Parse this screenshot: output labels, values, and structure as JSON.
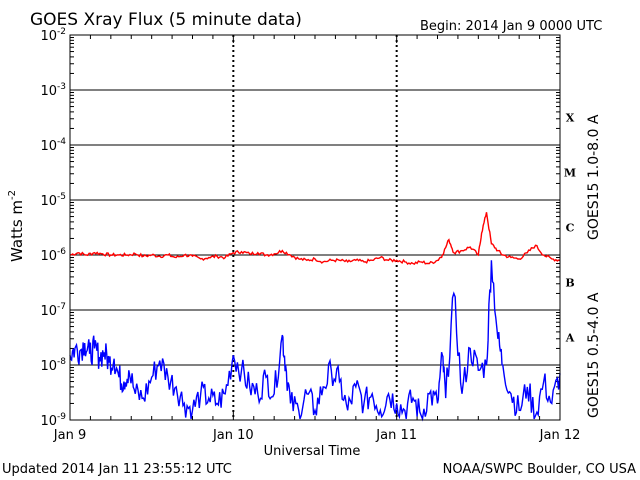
{
  "chart_data": {
    "type": "line",
    "title": "GOES Xray Flux (5 minute data)",
    "begin_label": "Begin:  2014 Jan 9 0000 UTC",
    "xlabel": "Universal Time",
    "ylabel_base": "Watts m",
    "ylabel_exp": "-2",
    "x_ticks": [
      "Jan 9",
      "Jan 10",
      "Jan 11",
      "Jan 12"
    ],
    "x_range_days": [
      0,
      3
    ],
    "yscale": "log",
    "ylim": [
      1e-09,
      0.01
    ],
    "y_ticks": [
      {
        "base": "10",
        "exp": "-9"
      },
      {
        "base": "10",
        "exp": "-8"
      },
      {
        "base": "10",
        "exp": "-7"
      },
      {
        "base": "10",
        "exp": "-6"
      },
      {
        "base": "10",
        "exp": "-5"
      },
      {
        "base": "10",
        "exp": "-4"
      },
      {
        "base": "10",
        "exp": "-3"
      },
      {
        "base": "10",
        "exp": "-2"
      }
    ],
    "flare_classes": [
      {
        "label": "A",
        "min": 1e-08
      },
      {
        "label": "B",
        "min": 1e-07
      },
      {
        "label": "C",
        "min": 1e-06
      },
      {
        "label": "M",
        "min": 1e-05
      },
      {
        "label": "X",
        "min": 0.0001
      }
    ],
    "series": [
      {
        "name": "GOES15 1.0-8.0 A",
        "color": "#ff0000",
        "x": [
          0.0,
          0.05,
          0.1,
          0.15,
          0.2,
          0.25,
          0.3,
          0.35,
          0.4,
          0.45,
          0.5,
          0.55,
          0.6,
          0.65,
          0.7,
          0.75,
          0.8,
          0.85,
          0.9,
          0.95,
          1.0,
          1.05,
          1.1,
          1.15,
          1.2,
          1.25,
          1.3,
          1.35,
          1.4,
          1.45,
          1.5,
          1.55,
          1.6,
          1.65,
          1.7,
          1.75,
          1.8,
          1.85,
          1.9,
          1.95,
          2.0,
          2.05,
          2.1,
          2.15,
          2.2,
          2.25,
          2.28,
          2.32,
          2.35,
          2.4,
          2.45,
          2.5,
          2.52,
          2.55,
          2.58,
          2.62,
          2.65,
          2.7,
          2.75,
          2.8,
          2.85,
          2.9,
          2.95,
          3.0
        ],
        "y": [
          1e-06,
          1.1e-06,
          1e-06,
          1.1e-06,
          1.05e-06,
          1e-06,
          1e-06,
          1e-06,
          1.05e-06,
          9.5e-07,
          1e-06,
          9.5e-07,
          1e-06,
          9e-07,
          1e-06,
          9.5e-07,
          8.5e-07,
          9e-07,
          9.5e-07,
          9e-07,
          1.1e-06,
          1.15e-06,
          1.05e-06,
          1.1e-06,
          1e-06,
          1.05e-06,
          1.2e-06,
          1e-06,
          8.5e-07,
          8e-07,
          8.5e-07,
          7.5e-07,
          8e-07,
          8e-07,
          7.5e-07,
          8e-07,
          7.5e-07,
          8e-07,
          9e-07,
          8e-07,
          8e-07,
          7.5e-07,
          7e-07,
          7.5e-07,
          7e-07,
          8e-07,
          1e-06,
          1.9e-06,
          1.1e-06,
          1.2e-06,
          1.4e-06,
          1e-06,
          2.5e-06,
          6e-06,
          1.6e-06,
          1.2e-06,
          1e-06,
          9e-07,
          8.5e-07,
          1.1e-06,
          1.5e-06,
          1e-06,
          8.5e-07,
          8e-07
        ]
      },
      {
        "name": "GOES15 0.5-4.0 A",
        "color": "#0000ff",
        "x": [
          0.0,
          0.03,
          0.06,
          0.09,
          0.12,
          0.15,
          0.18,
          0.21,
          0.24,
          0.27,
          0.3,
          0.33,
          0.36,
          0.4,
          0.45,
          0.5,
          0.55,
          0.6,
          0.65,
          0.7,
          0.75,
          0.8,
          0.85,
          0.9,
          0.95,
          1.0,
          1.05,
          1.1,
          1.15,
          1.2,
          1.25,
          1.3,
          1.32,
          1.35,
          1.4,
          1.45,
          1.5,
          1.55,
          1.6,
          1.65,
          1.7,
          1.75,
          1.8,
          1.85,
          1.9,
          1.95,
          2.0,
          2.05,
          2.1,
          2.15,
          2.2,
          2.25,
          2.28,
          2.3,
          2.35,
          2.4,
          2.45,
          2.5,
          2.55,
          2.58,
          2.62,
          2.65,
          2.7,
          2.75,
          2.8,
          2.85,
          2.9,
          2.95,
          3.0
        ],
        "y": [
          1.5e-08,
          2e-08,
          1.8e-08,
          2.5e-08,
          1.6e-08,
          2e-08,
          1.4e-08,
          1.7e-08,
          1.1e-08,
          1.3e-08,
          6e-09,
          5e-09,
          8e-09,
          3e-09,
          2.5e-09,
          6e-09,
          1.2e-08,
          6e-09,
          4e-09,
          2e-09,
          1.5e-09,
          3e-09,
          2.5e-09,
          2e-09,
          3e-09,
          1.5e-08,
          8e-09,
          4e-09,
          3e-09,
          6e-09,
          3e-09,
          3.5e-08,
          1e-08,
          2e-09,
          1.5e-09,
          3e-09,
          1.5e-09,
          4e-09,
          8e-09,
          5e-09,
          1.5e-09,
          4e-09,
          2e-09,
          3e-09,
          1.5e-09,
          3e-09,
          2e-09,
          1.5e-09,
          2.5e-09,
          1.2e-09,
          3e-09,
          2e-09,
          1.5e-08,
          2.5e-09,
          2e-07,
          3e-09,
          2e-08,
          8e-09,
          1e-08,
          8e-07,
          3e-08,
          1e-08,
          3e-09,
          1.5e-09,
          4e-09,
          1.2e-09,
          5e-09,
          2e-09,
          7e-09
        ]
      }
    ]
  },
  "footer": {
    "updated": "Updated 2014 Jan 11 23:55:12 UTC",
    "credit": "NOAA/SWPC Boulder, CO USA"
  }
}
